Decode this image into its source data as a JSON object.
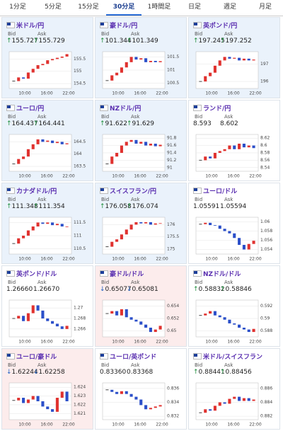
{
  "tabs": {
    "items": [
      "1分足",
      "5分足",
      "15分足",
      "30分足",
      "1時間足",
      "日足",
      "週足",
      "月足"
    ],
    "active": 3
  },
  "bid_label": "Bid",
  "ask_label": "Ask",
  "time_labels": [
    "10:00",
    "16:00",
    "22:00"
  ],
  "panels": [
    {
      "name": "米ドル/円",
      "arrow": "↑",
      "bid": "155.727",
      "ask": "155.729",
      "background": "#eaf2fb",
      "chart": {
        "ylim": [
          154.3,
          155.8
        ],
        "yticks": [
          155.5,
          155,
          154.5
        ],
        "values": [
          154.6,
          154.75,
          154.7,
          154.95,
          155.1,
          155.25,
          155.3,
          155.45,
          155.5,
          155.55,
          155.6,
          155.7
        ]
      }
    },
    {
      "name": "豪ドル/円",
      "arrow": "↑",
      "bid": "101.344",
      "ask": "101.349",
      "background": "#eaf2fb",
      "chart": {
        "ylim": [
          100.3,
          101.7
        ],
        "yticks": [
          101.5,
          101,
          100.5
        ],
        "values": [
          100.6,
          100.8,
          100.9,
          101.1,
          101.3,
          101.5,
          101.4,
          101.45,
          101.3,
          101.35,
          101.3,
          101.34
        ]
      }
    },
    {
      "name": "英ポンド/円",
      "arrow": "↑",
      "bid": "197.245",
      "ask": "197.252",
      "background": "#eaf2fb",
      "chart": {
        "ylim": [
          195.6,
          197.7
        ],
        "yticks": [
          197,
          196
        ],
        "values": [
          196.0,
          196.3,
          196.5,
          196.9,
          197.2,
          197.4,
          197.3,
          197.35,
          197.2,
          197.3,
          197.2,
          197.25
        ]
      }
    },
    {
      "name": "ユーロ/円",
      "arrow": "↑",
      "bid": "164.437",
      "ask": "164.441",
      "background": "#eaf2fb",
      "chart": {
        "ylim": [
          163.3,
          164.8
        ],
        "yticks": [
          164.5,
          164,
          163.5
        ],
        "values": [
          163.6,
          163.8,
          163.9,
          164.2,
          164.4,
          164.6,
          164.5,
          164.55,
          164.45,
          164.5,
          164.4,
          164.44
        ]
      }
    },
    {
      "name": "NZドル/円",
      "arrow": "↑",
      "bid": "91.622",
      "ask": "91.629",
      "background": "#eaf2fb",
      "chart": {
        "ylim": [
          90.9,
          91.9
        ],
        "yticks": [
          91.8,
          91.6,
          91.4,
          91.2,
          91
        ],
        "values": [
          91.1,
          91.3,
          91.4,
          91.6,
          91.7,
          91.75,
          91.65,
          91.7,
          91.6,
          91.65,
          91.58,
          91.62
        ]
      }
    },
    {
      "name": "ランド/円",
      "bid": "8.593",
      "ask": "8.602",
      "background": "#ffffff",
      "chart": {
        "ylim": [
          8.53,
          8.63
        ],
        "yticks": [
          8.62,
          8.6,
          8.58,
          8.56,
          8.54
        ],
        "values": [
          8.56,
          8.57,
          8.565,
          8.58,
          8.585,
          8.59,
          8.6,
          8.59,
          8.605,
          8.595,
          8.6,
          8.593
        ]
      }
    },
    {
      "name": "カナダドル/円",
      "arrow": "↑",
      "bid": "111.348",
      "ask": "111.354",
      "background": "#eaf2fb",
      "chart": {
        "ylim": [
          110.3,
          111.7
        ],
        "yticks": [
          111.5,
          111,
          110.5
        ],
        "values": [
          110.7,
          110.9,
          111.0,
          111.2,
          111.35,
          111.5,
          111.45,
          111.5,
          111.4,
          111.45,
          111.35,
          111.35
        ]
      }
    },
    {
      "name": "スイスフラン/円",
      "arrow": "↑",
      "bid": "176.058",
      "ask": "176.074",
      "background": "#eaf2fb",
      "chart": {
        "ylim": [
          174.8,
          176.3
        ],
        "yticks": [
          176,
          175.5,
          175
        ],
        "values": [
          175.1,
          175.3,
          175.4,
          175.6,
          175.8,
          176.0,
          176.1,
          176.05,
          176.1,
          176.0,
          176.05,
          176.06
        ]
      }
    },
    {
      "name": "ユーロ/ドル",
      "bid": "1.05591",
      "ask": "1.05594",
      "background": "#ffffff",
      "chart": {
        "ylim": [
          1.053,
          1.061
        ],
        "yticks": [
          1.06,
          1.058,
          1.056,
          1.054
        ],
        "values": [
          1.0595,
          1.0598,
          1.0593,
          1.0592,
          1.0585,
          1.058,
          1.0575,
          1.0565,
          1.055,
          1.054,
          1.0552,
          1.0559
        ]
      }
    },
    {
      "name": "英ポンド/ドル",
      "bid": "1.26660",
      "ask": "1.26670",
      "background": "#ffffff",
      "chart": {
        "ylim": [
          1.2645,
          1.2715
        ],
        "yticks": [
          1.27,
          1.268,
          1.266
        ],
        "values": [
          1.268,
          1.2685,
          1.2675,
          1.269,
          1.2705,
          1.2695,
          1.268,
          1.2675,
          1.267,
          1.2665,
          1.266,
          1.2666
        ]
      }
    },
    {
      "name": "豪ドル/ドル",
      "arrow": "↓",
      "bid": "0.65077",
      "ask": "0.65081",
      "background": "#fcecec",
      "chart": {
        "ylim": [
          0.649,
          0.655
        ],
        "yticks": [
          0.654,
          0.652,
          0.65
        ],
        "values": [
          0.6528,
          0.6532,
          0.6525,
          0.6535,
          0.6522,
          0.6518,
          0.6515,
          0.651,
          0.6505,
          0.6498,
          0.6502,
          0.6508
        ]
      }
    },
    {
      "name": "NZドル/ドル",
      "arrow": "↑",
      "bid": "0.58832",
      "ask": "0.58846",
      "background": "#ffffff",
      "chart": {
        "ylim": [
          0.587,
          0.593
        ],
        "yticks": [
          0.592,
          0.59,
          0.588
        ],
        "values": [
          0.5905,
          0.5908,
          0.5912,
          0.5905,
          0.5902,
          0.5898,
          0.5892,
          0.589,
          0.5885,
          0.5882,
          0.5878,
          0.5883
        ]
      }
    },
    {
      "name": "ユーロ/豪ドル",
      "arrow": "↓",
      "bid": "1.62244",
      "ask": "1.62258",
      "background": "#fcecec",
      "chart": {
        "ylim": [
          1.6203,
          1.6245
        ],
        "yticks": [
          1.624,
          1.623,
          1.622,
          1.621
        ],
        "values": [
          1.6225,
          1.6228,
          1.6222,
          1.6226,
          1.623,
          1.6224,
          1.6218,
          1.6215,
          1.6212,
          1.6228,
          1.6235,
          1.6224
        ]
      }
    },
    {
      "name": "ユーロ/英ポンド",
      "bid": "0.83360",
      "ask": "0.83368",
      "background": "#ffffff",
      "chart": {
        "ylim": [
          0.8315,
          0.8368
        ],
        "yticks": [
          0.836,
          0.834,
          0.832
        ],
        "values": [
          0.8358,
          0.8355,
          0.8352,
          0.8356,
          0.8352,
          0.8348,
          0.8344,
          0.8336,
          0.833,
          0.8332,
          0.8334,
          0.8336
        ]
      }
    },
    {
      "name": "米ドル/スイスフラン",
      "arrow": "↑",
      "bid": "0.88441",
      "ask": "0.88456",
      "background": "#ffffff",
      "chart": {
        "ylim": [
          0.8815,
          0.8868
        ],
        "yticks": [
          0.886,
          0.884,
          0.882
        ],
        "values": [
          0.8825,
          0.883,
          0.8828,
          0.8835,
          0.884,
          0.8838,
          0.8845,
          0.8848,
          0.8842,
          0.8846,
          0.8842,
          0.8844
        ]
      }
    }
  ]
}
